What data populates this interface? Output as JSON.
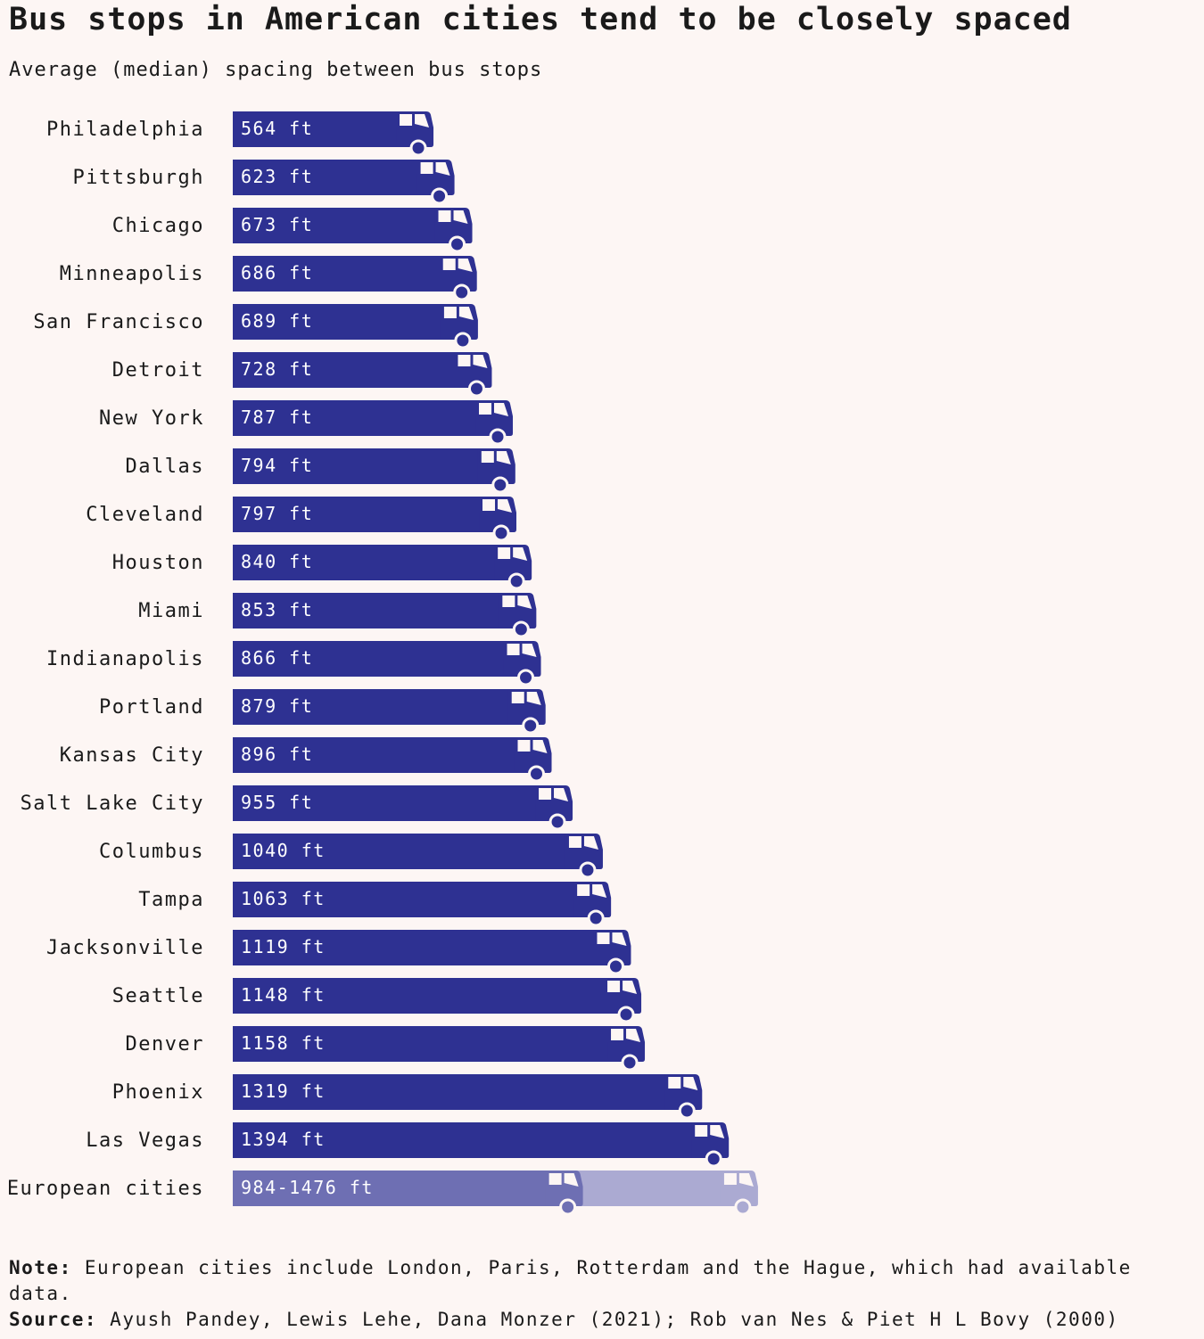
{
  "title": "Bus stops in American cities tend to be closely spaced",
  "subtitle": "Average (median) spacing between bus stops",
  "colors": {
    "bar": "#2e3192",
    "european_low": "#6e6fb3",
    "european_high": "#abaad2",
    "label_text": "#ffffff"
  },
  "chart_data": {
    "type": "bar",
    "orientation": "horizontal",
    "unit": "ft",
    "categories": [
      "Philadelphia",
      "Pittsburgh",
      "Chicago",
      "Minneapolis",
      "San Francisco",
      "Detroit",
      "New York",
      "Dallas",
      "Cleveland",
      "Houston",
      "Miami",
      "Indianapolis",
      "Portland",
      "Kansas City",
      "Salt Lake City",
      "Columbus",
      "Tampa",
      "Jacksonville",
      "Seattle",
      "Denver",
      "Phoenix",
      "Las Vegas"
    ],
    "values": [
      564,
      623,
      673,
      686,
      689,
      728,
      787,
      794,
      797,
      840,
      853,
      866,
      879,
      896,
      955,
      1040,
      1063,
      1119,
      1148,
      1158,
      1319,
      1394
    ],
    "labels": [
      "564 ft",
      "623 ft",
      "673 ft",
      "686 ft",
      "689 ft",
      "728 ft",
      "787 ft",
      "794 ft",
      "797 ft",
      "840 ft",
      "853 ft",
      "866 ft",
      "879 ft",
      "896 ft",
      "955 ft",
      "1040 ft",
      "1063 ft",
      "1119 ft",
      "1148 ft",
      "1158 ft",
      "1319 ft",
      "1394 ft"
    ],
    "range": {
      "category": "European cities",
      "low": 984,
      "high": 1476,
      "label": "984-1476 ft"
    },
    "xlim": [
      0,
      1476
    ],
    "grid": false
  },
  "note_label": "Note:",
  "note": "European cities include London, Paris, Rotterdam and the Hague, which had available data.",
  "source_label": "Source:",
  "source": "Ayush Pandey, Lewis Lehe, Dana Monzer (2021); Rob van Nes & Piet H L Bovy (2000)"
}
